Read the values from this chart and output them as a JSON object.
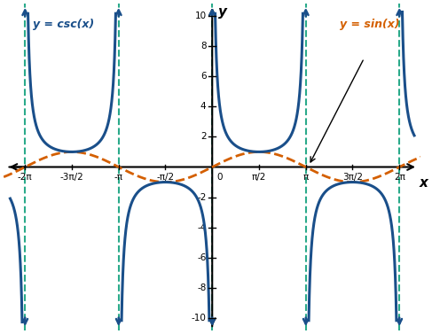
{
  "title": "",
  "xlabel": "x",
  "ylabel": "y",
  "xlim": [
    -7.0,
    7.0
  ],
  "ylim": [
    -10.8,
    10.8
  ],
  "csc_color": "#1a4f8a",
  "sin_color": "#d45f00",
  "asymptote_color": "#2aaa8a",
  "asymptote_positions": [
    -6.283185307,
    -3.141592653,
    0,
    3.141592653,
    6.283185307
  ],
  "tick_positions_x": [
    -6.283185307,
    -4.71238898,
    -3.141592653,
    -1.5707963,
    1.5707963,
    3.141592653,
    4.71238898,
    6.283185307
  ],
  "tick_labels_x": [
    "-2π",
    "-3π/2",
    "-π",
    "-π/2",
    "π/2",
    "π",
    "3π/2",
    "2π"
  ],
  "tick_positions_y": [
    -10,
    -8,
    -6,
    -4,
    -2,
    2,
    4,
    6,
    8,
    10
  ],
  "tick_labels_y": [
    "-10",
    "-8",
    "-6",
    "-4",
    "-2",
    "2",
    "4",
    "6",
    "8",
    "10"
  ],
  "label_csc": "y = csc(x)",
  "label_sin": "y = sin(x)",
  "clip_val": 10.3
}
